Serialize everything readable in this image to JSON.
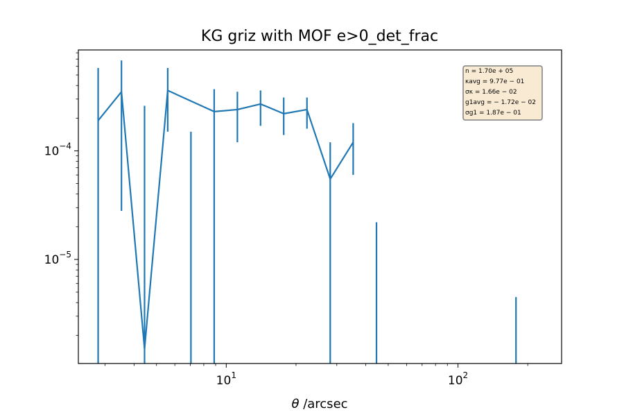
{
  "chart_data": {
    "type": "line",
    "title": "KG griz with MOF e>0_det_frac",
    "xlabel": "θ /arcsec",
    "xlabel_symbol": "θ",
    "xlabel_unit": " /arcsec",
    "ylabel": "",
    "xscale": "log",
    "yscale": "log",
    "xlim": [
      2.3,
      280
    ],
    "ylim": [
      1.1e-06,
      0.00085
    ],
    "grid": false,
    "color": "#1f77b4",
    "x_ticks": [
      {
        "value": 10,
        "base": "10",
        "exp": "1"
      },
      {
        "value": 100,
        "base": "10",
        "exp": "2"
      }
    ],
    "y_ticks": [
      {
        "value": 0.0001,
        "base": "10",
        "exp": "−4"
      },
      {
        "value": 1e-05,
        "base": "10",
        "exp": "−5"
      }
    ],
    "series": [
      {
        "points": [
          {
            "x": 2.8,
            "y": 0.00019,
            "yerr_low": 0.0,
            "yerr_high": 0.00058
          },
          {
            "x": 3.53,
            "y": 0.00035,
            "yerr_low": 2.8e-05,
            "yerr_high": 0.00068
          },
          {
            "x": 4.44,
            "y": 1.5e-06,
            "yerr_low": 0.0,
            "yerr_high": 0.00026
          },
          {
            "x": 5.59,
            "y": 0.00036,
            "yerr_low": 0.00015,
            "yerr_high": 0.00058
          },
          {
            "x": 7.04,
            "y": 0.0,
            "yerr_low": 0.0,
            "yerr_high": 0.00015
          },
          {
            "x": 8.87,
            "y": 0.00023,
            "yerr_low": 0.0,
            "yerr_high": 0.00037
          },
          {
            "x": 11.17,
            "y": 0.00024,
            "yerr_low": 0.00012,
            "yerr_high": 0.00035
          },
          {
            "x": 14.06,
            "y": 0.00027,
            "yerr_low": 0.00017,
            "yerr_high": 0.00036
          },
          {
            "x": 17.7,
            "y": 0.00022,
            "yerr_low": 0.00014,
            "yerr_high": 0.00031
          },
          {
            "x": 22.3,
            "y": 0.00024,
            "yerr_low": 0.00016,
            "yerr_high": 0.00031
          },
          {
            "x": 28.1,
            "y": 5.5e-05,
            "yerr_low": 0.0,
            "yerr_high": 0.00012
          },
          {
            "x": 35.3,
            "y": 0.00012,
            "yerr_low": 6e-05,
            "yerr_high": 0.00018
          },
          {
            "x": 44.5,
            "y": 0.0,
            "yerr_low": 0.0,
            "yerr_high": 2.2e-05
          },
          {
            "x": 178,
            "y": 0.0,
            "yerr_low": 0.0,
            "yerr_high": 4.5e-06
          }
        ]
      }
    ],
    "annotation_box": {
      "placement": "top-right",
      "lines": [
        "n = 1.70e + 05",
        "κavg = 9.77e − 01",
        "σκ = 1.66e − 02",
        "g1avg = − 1.72e − 02",
        "σg1 = 1.87e − 01"
      ]
    }
  }
}
